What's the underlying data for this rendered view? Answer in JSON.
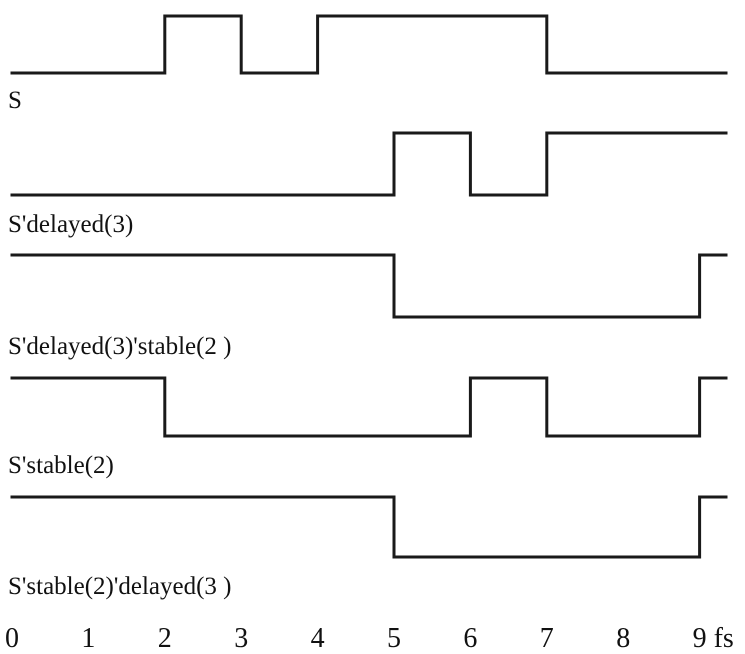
{
  "diagram": {
    "type": "timing-diagram",
    "time_axis": {
      "ticks": [
        "0",
        "1",
        "2",
        "3",
        "4",
        "5",
        "6",
        "7",
        "8",
        "9"
      ],
      "unit": "fs"
    },
    "signals": [
      {
        "label": "S",
        "initial": 0,
        "transitions": [
          2,
          3,
          4,
          7
        ]
      },
      {
        "label": "S'delayed(3)",
        "initial": 0,
        "transitions": [
          5,
          6,
          7
        ]
      },
      {
        "label": "S'delayed(3)'stable(2 )",
        "initial": 1,
        "transitions": [
          5,
          9
        ]
      },
      {
        "label": "S'stable(2)",
        "initial": 1,
        "transitions": [
          2,
          6,
          7,
          9
        ]
      },
      {
        "label": "S'stable(2)'delayed(3 )",
        "initial": 1,
        "transitions": [
          5,
          9
        ]
      }
    ]
  }
}
